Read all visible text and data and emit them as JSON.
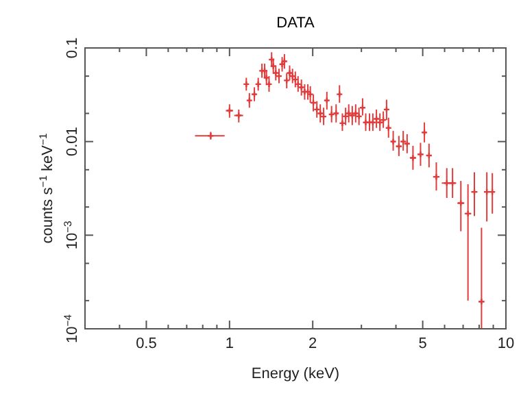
{
  "chart_data": {
    "type": "scatter",
    "title": "DATA",
    "xlabel": "Energy (keV)",
    "ylabel": "counts s$^{−1}$ keV$^{−1}$",
    "log": "xy",
    "marker": "cross",
    "grid": false,
    "xlim": [
      0.3,
      10
    ],
    "xticks": [
      {
        "value": 0.3,
        "label": null
      },
      {
        "value": 0.4,
        "label": null
      },
      0.5,
      {
        "value": 0.6,
        "label": null
      },
      {
        "value": 0.7,
        "label": null
      },
      {
        "value": 0.8,
        "label": null
      },
      {
        "value": 0.9,
        "label": null
      },
      1,
      2,
      {
        "value": 3,
        "label": null
      },
      {
        "value": 4,
        "label": null
      },
      5,
      {
        "value": 6,
        "label": null
      },
      {
        "value": 7,
        "label": null
      },
      {
        "value": 8,
        "label": null
      },
      {
        "value": 9,
        "label": null
      },
      10
    ],
    "ylim": [
      0.0001,
      0.1
    ],
    "yticks": [
      {
        "value": 0.0001,
        "label": "10$^{−4}$"
      },
      {
        "value": 0.0002,
        "label": null
      },
      {
        "value": 0.0005,
        "label": null
      },
      {
        "value": 0.001,
        "label": "10$^{−3}$"
      },
      {
        "value": 0.002,
        "label": null
      },
      {
        "value": 0.005,
        "label": null
      },
      0.01,
      {
        "value": 0.02,
        "label": null
      },
      {
        "value": 0.05,
        "label": null
      },
      0.1
    ],
    "series": [
      {
        "color": "#e03c3c",
        "x": [
          0.855,
          1.0,
          1.08,
          1.15,
          1.18,
          1.23,
          1.27,
          1.31,
          1.34,
          1.36,
          1.39,
          1.42,
          1.44,
          1.47,
          1.51,
          1.55,
          1.58,
          1.61,
          1.65,
          1.69,
          1.73,
          1.77,
          1.82,
          1.87,
          1.92,
          1.96,
          2.01,
          2.07,
          2.13,
          2.19,
          2.25,
          2.34,
          2.43,
          2.5,
          2.56,
          2.63,
          2.7,
          2.78,
          2.86,
          2.94,
          3.03,
          3.11,
          3.21,
          3.3,
          3.4,
          3.5,
          3.6,
          3.7,
          3.76,
          3.91,
          4.1,
          4.25,
          4.39,
          4.61,
          4.91,
          5.07,
          5.27,
          5.6,
          6.11,
          6.41,
          6.87,
          7.29,
          7.69,
          8.16,
          8.53,
          8.93
        ],
        "values": [
          0.0115,
          0.0214,
          0.019,
          0.041,
          0.0275,
          0.032,
          0.041,
          0.057,
          0.057,
          0.048,
          0.041,
          0.075,
          0.064,
          0.054,
          0.05,
          0.067,
          0.072,
          0.045,
          0.054,
          0.05,
          0.046,
          0.041,
          0.038,
          0.034,
          0.034,
          0.032,
          0.026,
          0.022,
          0.02,
          0.0185,
          0.0275,
          0.0195,
          0.02,
          0.032,
          0.0157,
          0.0186,
          0.02,
          0.019,
          0.02,
          0.0186,
          0.023,
          0.016,
          0.016,
          0.016,
          0.0175,
          0.016,
          0.017,
          0.022,
          0.014,
          0.01,
          0.0089,
          0.01,
          0.0095,
          0.0067,
          0.0073,
          0.0125,
          0.0071,
          0.0042,
          0.0036,
          0.0036,
          0.0022,
          0.0017,
          0.0029,
          0.000195,
          0.0029,
          0.0029
        ],
        "xerrors": [
          [
            0.75,
            0.96
          ],
          0.03,
          0.04,
          0.015,
          0.015,
          0.02,
          0.02,
          0.015,
          0.015,
          0.012,
          0.015,
          0.012,
          0.012,
          0.015,
          0.018,
          0.018,
          0.015,
          0.015,
          0.02,
          0.02,
          0.02,
          0.02,
          0.02,
          0.025,
          0.025,
          0.02,
          0.03,
          0.03,
          0.03,
          0.03,
          0.04,
          0.04,
          0.04,
          0.03,
          0.03,
          0.035,
          0.035,
          0.04,
          0.04,
          0.04,
          0.04,
          0.04,
          0.05,
          0.05,
          0.05,
          0.05,
          0.05,
          0.05,
          0.04,
          0.08,
          0.1,
          0.08,
          0.08,
          0.12,
          0.12,
          0.08,
          0.12,
          0.15,
          0.25,
          0.2,
          0.2,
          0.2,
          0.2,
          0.2,
          0.2,
          0.2
        ],
        "errors": [
          [
            0.0105,
            0.0127
          ],
          [
            0.018,
            0.025
          ],
          [
            0.016,
            0.022
          ],
          [
            0.035,
            0.048
          ],
          [
            0.023,
            0.033
          ],
          [
            0.027,
            0.038
          ],
          [
            0.035,
            0.048
          ],
          [
            0.048,
            0.068
          ],
          [
            0.048,
            0.068
          ],
          [
            0.04,
            0.058
          ],
          [
            0.034,
            0.05
          ],
          [
            0.063,
            0.09
          ],
          [
            0.053,
            0.077
          ],
          [
            0.045,
            0.065
          ],
          [
            0.042,
            0.06
          ],
          [
            0.056,
            0.08
          ],
          [
            0.06,
            0.086
          ],
          [
            0.037,
            0.054
          ],
          [
            0.045,
            0.065
          ],
          [
            0.042,
            0.06
          ],
          [
            0.038,
            0.056
          ],
          [
            0.034,
            0.05
          ],
          [
            0.031,
            0.046
          ],
          [
            0.028,
            0.041
          ],
          [
            0.028,
            0.041
          ],
          [
            0.026,
            0.039
          ],
          [
            0.021,
            0.032
          ],
          [
            0.018,
            0.027
          ],
          [
            0.016,
            0.025
          ],
          [
            0.015,
            0.023
          ],
          [
            0.022,
            0.034
          ],
          [
            0.016,
            0.024
          ],
          [
            0.016,
            0.025
          ],
          [
            0.026,
            0.04
          ],
          [
            0.013,
            0.02
          ],
          [
            0.015,
            0.023
          ],
          [
            0.016,
            0.025
          ],
          [
            0.015,
            0.024
          ],
          [
            0.016,
            0.025
          ],
          [
            0.015,
            0.023
          ],
          [
            0.019,
            0.029
          ],
          [
            0.013,
            0.02
          ],
          [
            0.013,
            0.02
          ],
          [
            0.013,
            0.02
          ],
          [
            0.014,
            0.022
          ],
          [
            0.013,
            0.02
          ],
          [
            0.014,
            0.021
          ],
          [
            0.017,
            0.028
          ],
          [
            0.011,
            0.018
          ],
          [
            0.008,
            0.013
          ],
          [
            0.007,
            0.0115
          ],
          [
            0.008,
            0.013
          ],
          [
            0.0075,
            0.012
          ],
          [
            0.005,
            0.009
          ],
          [
            0.0055,
            0.0097
          ],
          [
            0.0098,
            0.016
          ],
          [
            0.0053,
            0.0095
          ],
          [
            0.003,
            0.006
          ],
          [
            0.0025,
            0.0052
          ],
          [
            0.0025,
            0.0052
          ],
          [
            0.0011,
            0.0038
          ],
          [
            0.0002,
            0.0035
          ],
          [
            0.0016,
            0.0047
          ],
          [
            0.0001,
            0.0012
          ],
          [
            0.0014,
            0.0047
          ],
          [
            0.0017,
            0.0046
          ]
        ]
      }
    ]
  }
}
